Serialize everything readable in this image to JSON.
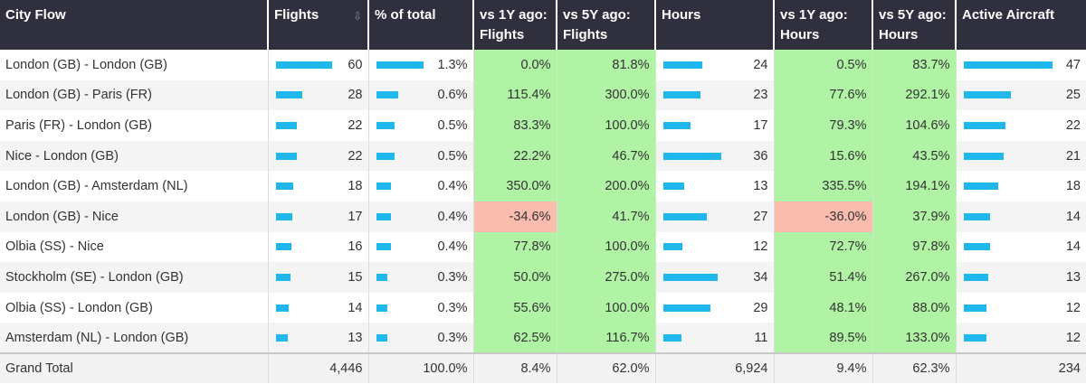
{
  "headers": {
    "city": "City Flow",
    "flights": "Flights",
    "pct_total": "% of total",
    "vs1y_flights": [
      "vs 1Y ago:",
      "Flights"
    ],
    "vs5y_flights": [
      "vs 5Y ago:",
      "Flights"
    ],
    "hours": "Hours",
    "vs1y_hours": [
      "vs 1Y ago:",
      "Hours"
    ],
    "vs5y_hours": [
      "vs 5Y ago:",
      "Hours"
    ],
    "active_aircraft": "Active Aircraft",
    "sort_icon": "sort-descending-icon"
  },
  "colors": {
    "header_bg": "#2f2f3e",
    "bar": "#1fb7ec",
    "positive": "#b0f3a5",
    "negative": "#f9bcae"
  },
  "rows": [
    {
      "city": "London (GB) - London (GB)",
      "flights": 60,
      "pct": 1.3,
      "pct_label": "1.3%",
      "vs1y_f": "0.0%",
      "vs5y_f": "81.8%",
      "hours": 24,
      "vs1y_h": "0.5%",
      "vs5y_h": "83.7%",
      "aircraft": 47
    },
    {
      "city": "London (GB) - Paris (FR)",
      "flights": 28,
      "pct": 0.6,
      "pct_label": "0.6%",
      "vs1y_f": "115.4%",
      "vs5y_f": "300.0%",
      "hours": 23,
      "vs1y_h": "77.6%",
      "vs5y_h": "292.1%",
      "aircraft": 25
    },
    {
      "city": "Paris (FR) - London (GB)",
      "flights": 22,
      "pct": 0.5,
      "pct_label": "0.5%",
      "vs1y_f": "83.3%",
      "vs5y_f": "100.0%",
      "hours": 17,
      "vs1y_h": "79.3%",
      "vs5y_h": "104.6%",
      "aircraft": 22
    },
    {
      "city": "Nice - London (GB)",
      "flights": 22,
      "pct": 0.5,
      "pct_label": "0.5%",
      "vs1y_f": "22.2%",
      "vs5y_f": "46.7%",
      "hours": 36,
      "vs1y_h": "15.6%",
      "vs5y_h": "43.5%",
      "aircraft": 21
    },
    {
      "city": "London (GB) - Amsterdam (NL)",
      "flights": 18,
      "pct": 0.4,
      "pct_label": "0.4%",
      "vs1y_f": "350.0%",
      "vs5y_f": "200.0%",
      "hours": 13,
      "vs1y_h": "335.5%",
      "vs5y_h": "194.1%",
      "aircraft": 18
    },
    {
      "city": "London (GB) - Nice",
      "flights": 17,
      "pct": 0.4,
      "pct_label": "0.4%",
      "vs1y_f": "-34.6%",
      "vs5y_f": "41.7%",
      "hours": 27,
      "vs1y_h": "-36.0%",
      "vs5y_h": "37.9%",
      "aircraft": 14
    },
    {
      "city": "Olbia (SS) - Nice",
      "flights": 16,
      "pct": 0.4,
      "pct_label": "0.4%",
      "vs1y_f": "77.8%",
      "vs5y_f": "100.0%",
      "hours": 12,
      "vs1y_h": "72.7%",
      "vs5y_h": "97.8%",
      "aircraft": 14
    },
    {
      "city": "Stockholm (SE) - London (GB)",
      "flights": 15,
      "pct": 0.3,
      "pct_label": "0.3%",
      "vs1y_f": "50.0%",
      "vs5y_f": "275.0%",
      "hours": 34,
      "vs1y_h": "51.4%",
      "vs5y_h": "267.0%",
      "aircraft": 13
    },
    {
      "city": "Olbia (SS) - London (GB)",
      "flights": 14,
      "pct": 0.3,
      "pct_label": "0.3%",
      "vs1y_f": "55.6%",
      "vs5y_f": "100.0%",
      "hours": 29,
      "vs1y_h": "48.1%",
      "vs5y_h": "88.0%",
      "aircraft": 12
    },
    {
      "city": "Amsterdam (NL) - London (GB)",
      "flights": 13,
      "pct": 0.3,
      "pct_label": "0.3%",
      "vs1y_f": "62.5%",
      "vs5y_f": "116.7%",
      "hours": 11,
      "vs1y_h": "89.5%",
      "vs5y_h": "133.0%",
      "aircraft": 12
    }
  ],
  "total": {
    "label": "Grand Total",
    "flights": "4,446",
    "pct": "100.0%",
    "vs1y_f": "8.4%",
    "vs5y_f": "62.0%",
    "hours": "6,924",
    "vs1y_h": "9.4%",
    "vs5y_h": "62.3%",
    "aircraft": "234"
  }
}
